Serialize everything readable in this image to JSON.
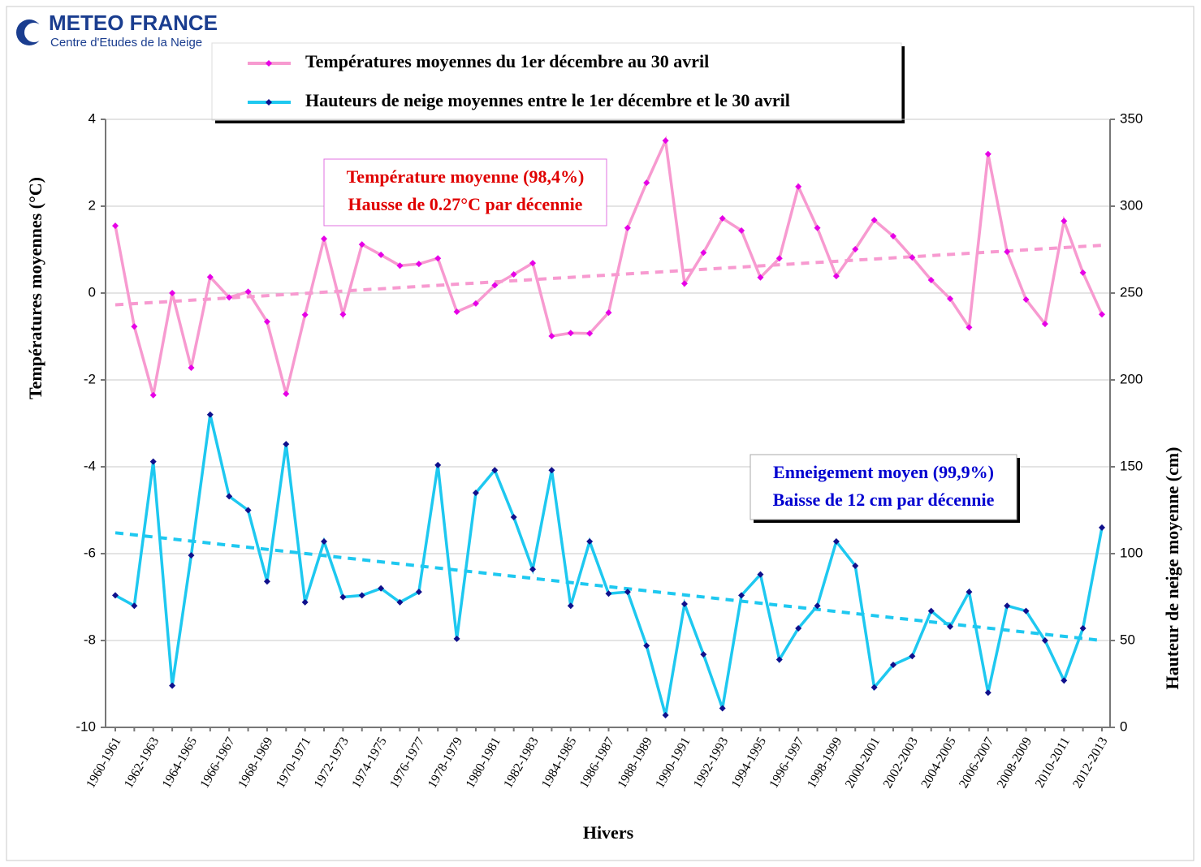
{
  "header": {
    "brand": "METEO FRANCE",
    "subtitle": "Centre d'Etudes de la Neige"
  },
  "chart_data": {
    "type": "line",
    "categories": [
      "1960-1961",
      null,
      "1962-1963",
      null,
      "1964-1965",
      null,
      "1966-1967",
      null,
      "1968-1969",
      null,
      "1970-1971",
      null,
      "1972-1973",
      null,
      "1974-1975",
      null,
      "1976-1977",
      null,
      "1978-1979",
      null,
      "1980-1981",
      null,
      "1982-1983",
      null,
      "1984-1985",
      null,
      "1986-1987",
      null,
      "1988-1989",
      null,
      "1990-1991",
      null,
      "1992-1993",
      null,
      "1994-1995",
      null,
      "1996-1997",
      null,
      "1998-1999",
      null,
      "2000-2001",
      null,
      "2002-2003",
      null,
      "2004-2005",
      null,
      "2006-2007",
      null,
      "2008-2009",
      null,
      "2010-2011",
      null,
      "2012-2013"
    ],
    "series": [
      {
        "name": "Températures moyennes du 1er décembre au 30 avril",
        "color": "#f79ad0",
        "marker_color": "#e600e6",
        "axis": "y",
        "values": [
          1.55,
          -0.77,
          -2.35,
          0.0,
          -1.72,
          0.37,
          -0.1,
          0.03,
          -0.66,
          -2.32,
          -0.5,
          1.25,
          -0.49,
          1.12,
          0.88,
          0.63,
          0.67,
          0.8,
          -0.43,
          -0.24,
          0.18,
          0.43,
          0.69,
          -0.99,
          -0.92,
          -0.93,
          -0.45,
          1.5,
          2.54,
          3.51,
          0.22,
          0.93,
          1.72,
          1.44,
          0.36,
          0.8,
          2.45,
          1.5,
          0.39,
          1.01,
          1.68,
          1.31,
          0.82,
          0.3,
          -0.13,
          -0.79,
          3.2,
          0.95,
          -0.15,
          -0.71,
          1.66,
          0.47,
          -0.49
        ],
        "trend": [
          -0.27,
          1.1
        ]
      },
      {
        "name": "Hauteurs de neige moyennes entre le 1er décembre et le 30 avril",
        "color": "#1ec8f0",
        "marker_color": "#10108c",
        "axis": "y2",
        "values": [
          76,
          70,
          153,
          24,
          99,
          180,
          133,
          125,
          84,
          163,
          72,
          107,
          75,
          76,
          80,
          72,
          78,
          151,
          51,
          135,
          148,
          121,
          91,
          148,
          70,
          107,
          77,
          78,
          47,
          7,
          71,
          42,
          11,
          76,
          88,
          39,
          57,
          70,
          107,
          93,
          23,
          36,
          41,
          67,
          58,
          78,
          20,
          70,
          67,
          50,
          27,
          57,
          115
        ],
        "trend": [
          112,
          50
        ]
      }
    ],
    "ylim": [
      -10,
      4
    ],
    "yticks": [
      -10,
      -8,
      -6,
      -4,
      -2,
      0,
      2,
      4
    ],
    "y2lim": [
      0,
      350
    ],
    "y2ticks": [
      0,
      50,
      100,
      150,
      200,
      250,
      300,
      350
    ],
    "ylabel": "Températures moyennes (°C)",
    "y2label": "Hauteur de neige moyenne (cm)",
    "xlabel": "Hivers",
    "grid": true,
    "annotations": [
      {
        "lines": [
          "Température moyenne (98,4%)",
          "Hausse de 0.27°C par décennie"
        ],
        "color": "#e00000"
      },
      {
        "lines": [
          "Enneigement moyen (99,9%)",
          "Baisse de 12 cm par décennie"
        ],
        "color": "#0000d0"
      }
    ]
  }
}
